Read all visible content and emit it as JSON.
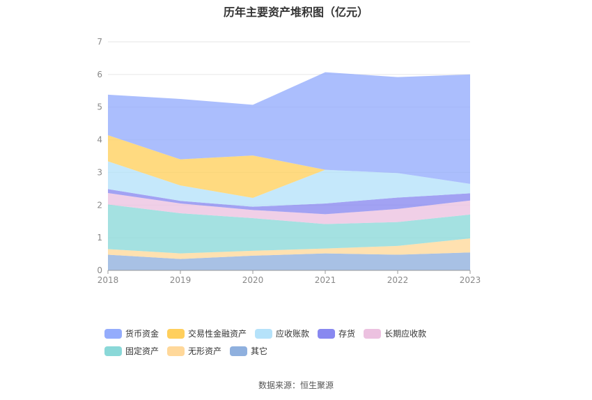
{
  "chart_data": {
    "type": "area",
    "title": "历年主要资产堆积图（亿元）",
    "stacked": true,
    "x": [
      "2018",
      "2019",
      "2020",
      "2021",
      "2022",
      "2023"
    ],
    "ylim": [
      0,
      7
    ],
    "yticks": [
      0,
      1,
      2,
      3,
      4,
      5,
      6,
      7
    ],
    "grid": true,
    "legend_position": "bottom",
    "series": [
      {
        "name": "其它",
        "color": "#8fb0de",
        "values": [
          0.48,
          0.35,
          0.45,
          0.52,
          0.48,
          0.55
        ]
      },
      {
        "name": "无形资产",
        "color": "#ffd89a",
        "values": [
          0.17,
          0.17,
          0.15,
          0.15,
          0.27,
          0.43
        ]
      },
      {
        "name": "固定资产",
        "color": "#8ad8d8",
        "values": [
          1.37,
          1.23,
          1.0,
          0.75,
          0.73,
          0.73
        ]
      },
      {
        "name": "长期应收款",
        "color": "#ecc1e0",
        "values": [
          0.35,
          0.3,
          0.25,
          0.3,
          0.4,
          0.43
        ]
      },
      {
        "name": "存货",
        "color": "#8888f0",
        "values": [
          0.12,
          0.08,
          0.1,
          0.33,
          0.35,
          0.22
        ]
      },
      {
        "name": "应收账款",
        "color": "#b5e2fa",
        "values": [
          0.85,
          0.47,
          0.27,
          1.03,
          0.75,
          0.29
        ]
      },
      {
        "name": "交易性金融资产",
        "color": "#ffcf5c",
        "values": [
          0.8,
          0.8,
          1.3,
          0.0,
          0.0,
          0.0
        ]
      },
      {
        "name": "货币资金",
        "color": "#94acfc",
        "values": [
          1.24,
          1.85,
          1.55,
          2.99,
          2.94,
          3.35
        ]
      }
    ],
    "legend_order": [
      "货币资金",
      "交易性金融资产",
      "应收账款",
      "存货",
      "长期应收款",
      "固定资产",
      "无形资产",
      "其它"
    ]
  },
  "source_note": "数据来源：恒生聚源"
}
